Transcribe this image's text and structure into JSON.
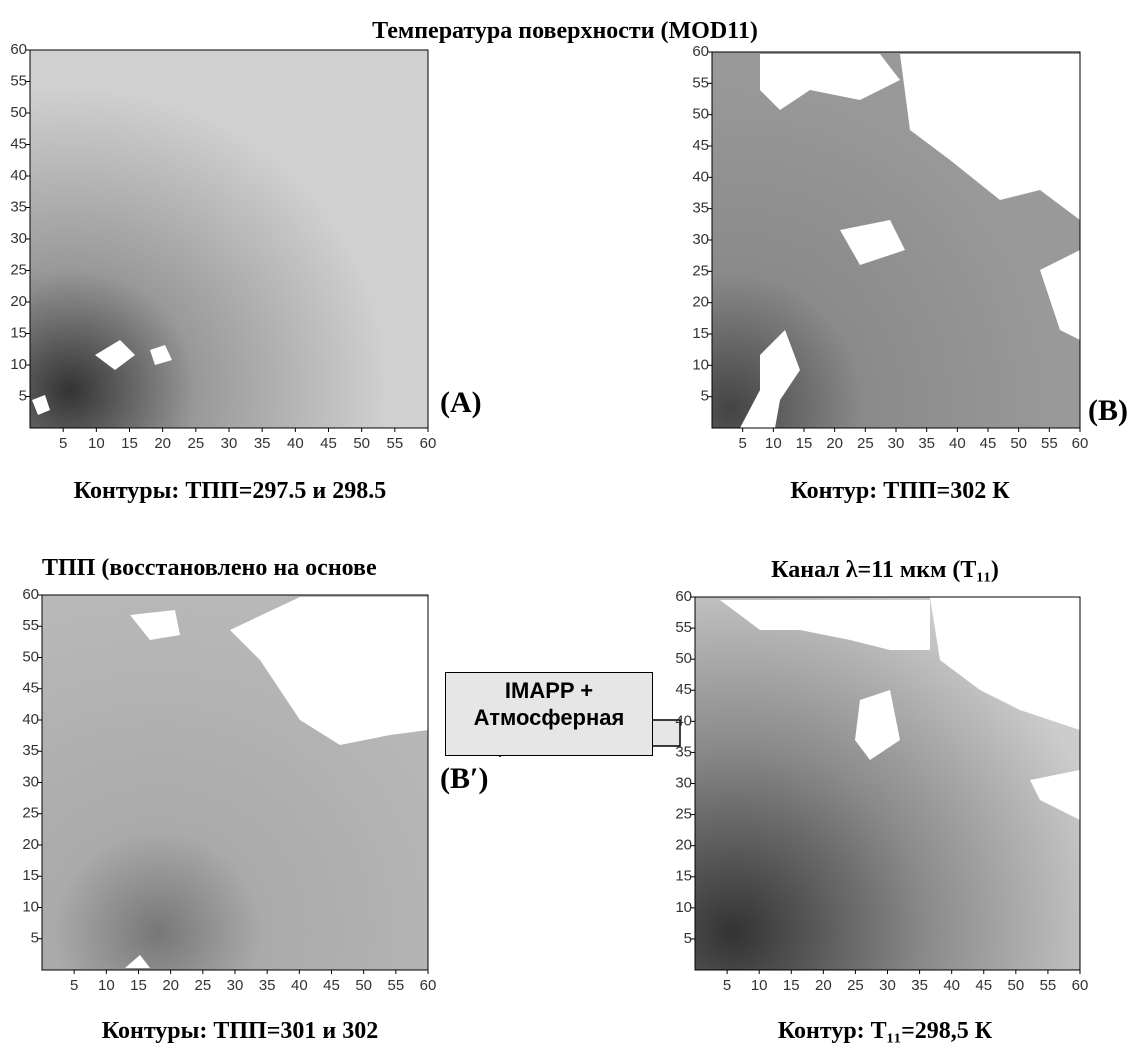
{
  "title": "Температура поверхности (MOD11)",
  "panels": [
    {
      "label": "(A)",
      "caption": "Контуры: ТПП=297.5 и 298.5",
      "xticks": [
        5,
        10,
        15,
        20,
        25,
        30,
        35,
        40,
        45,
        50,
        55,
        60
      ],
      "yticks": [
        5,
        10,
        15,
        20,
        25,
        30,
        35,
        40,
        45,
        50,
        55,
        60
      ]
    },
    {
      "label": "(B)",
      "caption": "Контур: ТПП=302 К",
      "xticks": [
        5,
        10,
        15,
        20,
        25,
        30,
        35,
        40,
        45,
        50,
        55,
        60
      ],
      "yticks": [
        5,
        10,
        15,
        20,
        25,
        30,
        35,
        40,
        45,
        50,
        55,
        60
      ]
    },
    {
      "title": "ТПП (восстановлено на основе",
      "label": "(B′)",
      "caption": "Контуры: ТПП=301 и 302",
      "xticks": [
        5,
        10,
        15,
        20,
        25,
        30,
        35,
        40,
        45,
        50,
        55,
        60
      ],
      "yticks": [
        5,
        10,
        15,
        20,
        25,
        30,
        35,
        40,
        45,
        50,
        55,
        60
      ]
    },
    {
      "title": "Канал λ=11 мкм (T₁₁)",
      "caption": "Контур: T₁₁=298,5 К",
      "xticks": [
        5,
        10,
        15,
        20,
        25,
        30,
        35,
        40,
        45,
        50,
        55,
        60
      ],
      "yticks": [
        5,
        10,
        15,
        20,
        25,
        30,
        35,
        40,
        45,
        50,
        55,
        60
      ]
    }
  ],
  "arrow_box": "IMAPP + Атмосферная"
}
